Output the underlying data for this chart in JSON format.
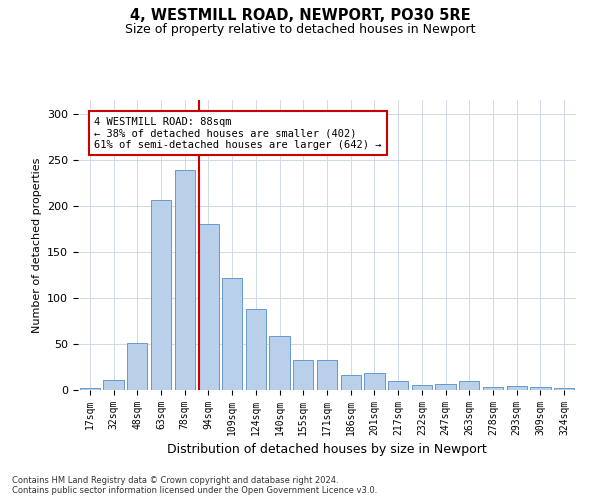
{
  "title1": "4, WESTMILL ROAD, NEWPORT, PO30 5RE",
  "title2": "Size of property relative to detached houses in Newport",
  "xlabel": "Distribution of detached houses by size in Newport",
  "ylabel": "Number of detached properties",
  "categories": [
    "17sqm",
    "32sqm",
    "48sqm",
    "63sqm",
    "78sqm",
    "94sqm",
    "109sqm",
    "124sqm",
    "140sqm",
    "155sqm",
    "171sqm",
    "186sqm",
    "201sqm",
    "217sqm",
    "232sqm",
    "247sqm",
    "263sqm",
    "278sqm",
    "293sqm",
    "309sqm",
    "324sqm"
  ],
  "values": [
    2,
    11,
    51,
    206,
    239,
    180,
    122,
    88,
    59,
    33,
    33,
    16,
    19,
    10,
    5,
    6,
    10,
    3,
    4,
    3,
    2
  ],
  "bar_color": "#b8d0ea",
  "bar_edge_color": "#6699cc",
  "vline_color": "#cc0000",
  "annotation_text": "4 WESTMILL ROAD: 88sqm\n← 38% of detached houses are smaller (402)\n61% of semi-detached houses are larger (642) →",
  "annotation_box_color": "#ffffff",
  "annotation_box_edge": "#cc0000",
  "ylim": [
    0,
    315
  ],
  "yticks": [
    0,
    50,
    100,
    150,
    200,
    250,
    300
  ],
  "footer": "Contains HM Land Registry data © Crown copyright and database right 2024.\nContains public sector information licensed under the Open Government Licence v3.0.",
  "background_color": "#ffffff",
  "grid_color": "#d0d8e8",
  "vline_pos": 4.6
}
